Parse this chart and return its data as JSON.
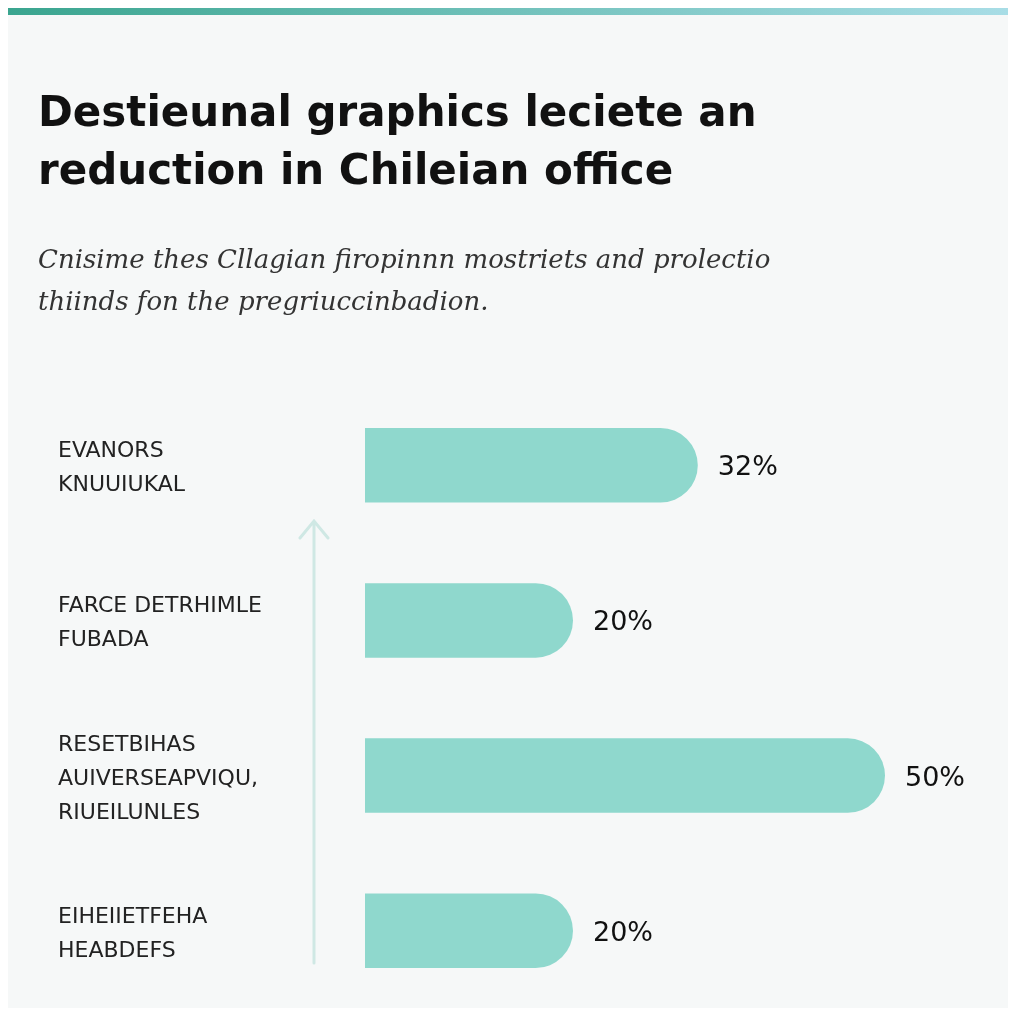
{
  "chart_data": {
    "type": "bar",
    "orientation": "horizontal",
    "title": "Destieunal graphics leciete an reduction in Chileian office",
    "subtitle": "Cnisime thes Cllagian firopinnn mostriets and prolectio thiinds fon the pregriuccinbadion.",
    "categories": [
      "EVANORS KNUUIUKAL",
      "FARCE DETRHIMLE FUBADA",
      "RESETBIHAS AUIVERSEAPVIQU, RIUEILUNLES",
      "EIHEIIETFEHA HEABDEFS"
    ],
    "values": [
      32,
      20,
      50,
      20
    ],
    "color": "#8fd8cd",
    "value_labels": [
      "32%",
      "20%",
      "50%",
      "20%"
    ]
  }
}
